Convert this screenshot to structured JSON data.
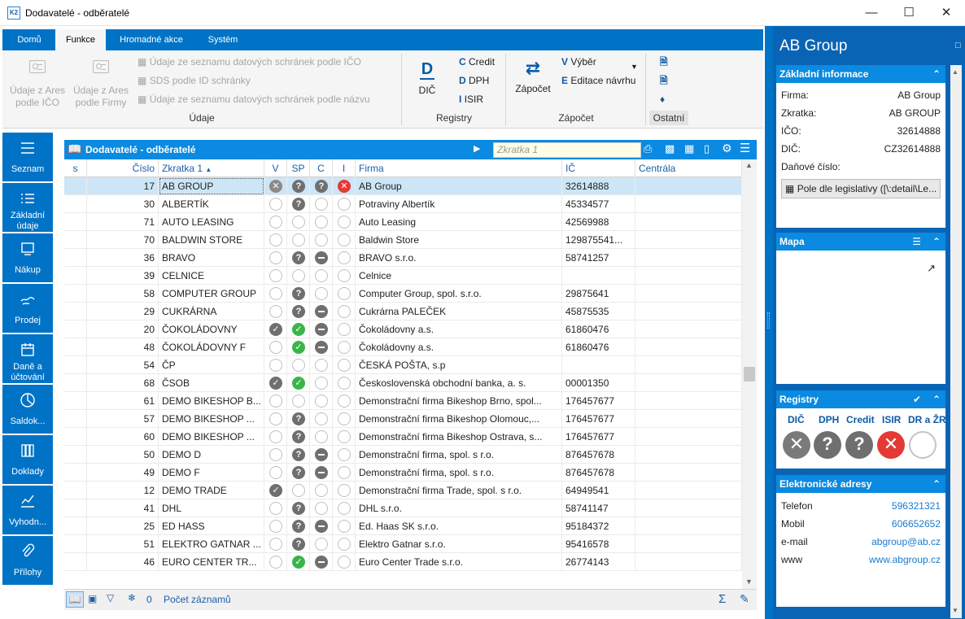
{
  "window": {
    "title": "Dodavatelé - odběratelé",
    "app_icon_text": "K2"
  },
  "ribbon": {
    "tabs": [
      "Domů",
      "Funkce",
      "Hromadné akce",
      "Systém"
    ],
    "groups": {
      "udaje": "Údaje",
      "registry": "Registry",
      "zapocet": "Zápočet",
      "ostatni": "Ostatní"
    },
    "udaje_big": [
      {
        "l1": "Údaje z Ares",
        "l2": "podle IČO"
      },
      {
        "l1": "Údaje z Ares",
        "l2": "podle Firmy"
      }
    ],
    "udaje_small": [
      "Údaje ze seznamu datových schránek podle IČO",
      "SDS podle ID schránky",
      "Údaje ze seznamu datových schránek podle názvu"
    ],
    "dic": {
      "letter": "D",
      "label": "DIČ"
    },
    "registry_small": [
      {
        "letter": "C",
        "label": "Credit"
      },
      {
        "letter": "D",
        "label": "DPH"
      },
      {
        "letter": "I",
        "label": "ISIR"
      }
    ],
    "zapocet_big": "Zápočet",
    "zapocet_small": [
      {
        "letter": "V",
        "label": "Výběr"
      },
      {
        "letter": "E",
        "label": "Editace návrhu"
      }
    ]
  },
  "sidebar": [
    {
      "name": "seznam",
      "l1": "Seznam",
      "l2": ""
    },
    {
      "name": "zakladni-udaje",
      "l1": "Základní",
      "l2": "údaje"
    },
    {
      "name": "nakup",
      "l1": "Nákup",
      "l2": ""
    },
    {
      "name": "prodej",
      "l1": "Prodej",
      "l2": ""
    },
    {
      "name": "dane",
      "l1": "Daně a",
      "l2": "účtování"
    },
    {
      "name": "saldokonto",
      "l1": "Saldok...",
      "l2": ""
    },
    {
      "name": "doklady",
      "l1": "Doklady",
      "l2": ""
    },
    {
      "name": "vyhodnoceni",
      "l1": "Vyhodn...",
      "l2": ""
    },
    {
      "name": "prilohy",
      "l1": "Přílohy",
      "l2": ""
    }
  ],
  "grid": {
    "title": "Dodavatelé - odběratelé",
    "search_placeholder": "Zkratka 1",
    "columns": [
      "s",
      "Číslo",
      "Zkratka 1",
      "V",
      "SP",
      "C",
      "I",
      "Firma",
      "IČ",
      "Centrála"
    ],
    "rows": [
      {
        "cislo": "17",
        "zkratka": "AB GROUP",
        "v": "xg",
        "sp": "q",
        "c": "q",
        "i": "xr",
        "firma": "AB Group",
        "ic": "32614888"
      },
      {
        "cislo": "30",
        "zkratka": "ALBERTÍK",
        "v": "e",
        "sp": "q",
        "c": "e",
        "i": "e",
        "firma": "Potraviny Albertík",
        "ic": "45334577"
      },
      {
        "cislo": "71",
        "zkratka": "AUTO LEASING",
        "v": "e",
        "sp": "e",
        "c": "e",
        "i": "e",
        "firma": "Auto Leasing",
        "ic": "42569988"
      },
      {
        "cislo": "70",
        "zkratka": "BALDWIN STORE",
        "v": "e",
        "sp": "e",
        "c": "e",
        "i": "e",
        "firma": "Baldwin Store",
        "ic": "129875541..."
      },
      {
        "cislo": "36",
        "zkratka": "BRAVO",
        "v": "e",
        "sp": "q",
        "c": "d",
        "i": "e",
        "firma": "BRAVO s.r.o.",
        "ic": "58741257"
      },
      {
        "cislo": "39",
        "zkratka": "CELNICE",
        "v": "e",
        "sp": "e",
        "c": "e",
        "i": "e",
        "firma": "Celnice",
        "ic": ""
      },
      {
        "cislo": "58",
        "zkratka": "COMPUTER GROUP",
        "v": "e",
        "sp": "q",
        "c": "e",
        "i": "e",
        "firma": "Computer Group, spol. s.r.o.",
        "ic": "29875641"
      },
      {
        "cislo": "29",
        "zkratka": "CUKRÁRNA",
        "v": "e",
        "sp": "q",
        "c": "d",
        "i": "e",
        "firma": "Cukrárna PALEČEK",
        "ic": "45875535"
      },
      {
        "cislo": "20",
        "zkratka": "ČOKOLÁDOVNY",
        "v": "g",
        "sp": "ok",
        "c": "d",
        "i": "e",
        "firma": "Čokoládovny a.s.",
        "ic": "61860476"
      },
      {
        "cislo": "48",
        "zkratka": "ČOKOLÁDOVNY F",
        "v": "e",
        "sp": "ok",
        "c": "d",
        "i": "e",
        "firma": "Čokoládovny a.s.",
        "ic": "61860476"
      },
      {
        "cislo": "54",
        "zkratka": "ČP",
        "v": "e",
        "sp": "e",
        "c": "e",
        "i": "e",
        "firma": "ČESKÁ POŠTA, s.p",
        "ic": ""
      },
      {
        "cislo": "68",
        "zkratka": "ČSOB",
        "v": "g",
        "sp": "ok",
        "c": "e",
        "i": "e",
        "firma": "Československá obchodní banka, a. s.",
        "ic": "00001350"
      },
      {
        "cislo": "61",
        "zkratka": "DEMO BIKESHOP B...",
        "v": "e",
        "sp": "e",
        "c": "e",
        "i": "e",
        "firma": "Demonstrační firma Bikeshop Brno, spol...",
        "ic": "176457677"
      },
      {
        "cislo": "57",
        "zkratka": "DEMO BIKESHOP ...",
        "v": "e",
        "sp": "q",
        "c": "e",
        "i": "e",
        "firma": "Demonstrační firma Bikeshop Olomouc,...",
        "ic": "176457677"
      },
      {
        "cislo": "60",
        "zkratka": "DEMO BIKESHOP ...",
        "v": "e",
        "sp": "q",
        "c": "e",
        "i": "e",
        "firma": "Demonstrační firma Bikeshop Ostrava, s...",
        "ic": "176457677"
      },
      {
        "cislo": "50",
        "zkratka": "DEMO D",
        "v": "e",
        "sp": "q",
        "c": "d",
        "i": "e",
        "firma": "Demonstrační firma, spol. s r.o.",
        "ic": "876457678"
      },
      {
        "cislo": "49",
        "zkratka": "DEMO F",
        "v": "e",
        "sp": "q",
        "c": "d",
        "i": "e",
        "firma": "Demonstrační firma, spol. s r.o.",
        "ic": "876457678"
      },
      {
        "cislo": "12",
        "zkratka": "DEMO TRADE",
        "v": "g",
        "sp": "e",
        "c": "e",
        "i": "e",
        "firma": "Demonstrační firma Trade, spol. s r.o.",
        "ic": "64949541"
      },
      {
        "cislo": "41",
        "zkratka": "DHL",
        "v": "e",
        "sp": "q",
        "c": "e",
        "i": "e",
        "firma": "DHL s.r.o.",
        "ic": "58741147"
      },
      {
        "cislo": "25",
        "zkratka": "ED HASS",
        "v": "e",
        "sp": "q",
        "c": "d",
        "i": "e",
        "firma": "Ed. Haas SK s.r.o.",
        "ic": "95184372"
      },
      {
        "cislo": "51",
        "zkratka": "ELEKTRO GATNAR ...",
        "v": "e",
        "sp": "q",
        "c": "e",
        "i": "e",
        "firma": "Elektro Gatnar s.r.o.",
        "ic": "95416578"
      },
      {
        "cislo": "46",
        "zkratka": "EURO CENTER TR...",
        "v": "e",
        "sp": "ok",
        "c": "d",
        "i": "e",
        "firma": "Euro Center Trade s.r.o.",
        "ic": "26774143"
      }
    ],
    "footer": {
      "count": "0",
      "label": "Počet záznamů"
    }
  },
  "right_panel": {
    "title": "AB Group",
    "zakladni": {
      "header": "Základní informace",
      "fields": [
        {
          "k": "Firma:",
          "v": "AB Group"
        },
        {
          "k": "Zkratka:",
          "v": "AB GROUP"
        },
        {
          "k": "IČO:",
          "v": "32614888"
        },
        {
          "k": "DIČ:",
          "v": "CZ32614888"
        },
        {
          "k": "Daňové číslo:",
          "v": ""
        }
      ],
      "button": "Pole dle legislativy ([\\:detail\\Le..."
    },
    "mapa": {
      "header": "Mapa"
    },
    "registry": {
      "header": "Registry",
      "labels": [
        "DIČ",
        "DPH",
        "Credit",
        "ISIR",
        "DR a ŽR"
      ]
    },
    "eadresy": {
      "header": "Elektronické adresy",
      "fields": [
        {
          "k": "Telefon",
          "v": "596321321"
        },
        {
          "k": "Mobil",
          "v": "606652652"
        },
        {
          "k": "e-mail",
          "v": "abgroup@ab.cz"
        },
        {
          "k": "www",
          "v": "www.abgroup.cz"
        }
      ]
    }
  },
  "colors": {
    "accent": "#0073c6",
    "header": "#0a8ae0",
    "panel": "#0a64b5",
    "selected_row": "#cde6f7",
    "green": "#3ab54a",
    "red": "#e53935"
  }
}
